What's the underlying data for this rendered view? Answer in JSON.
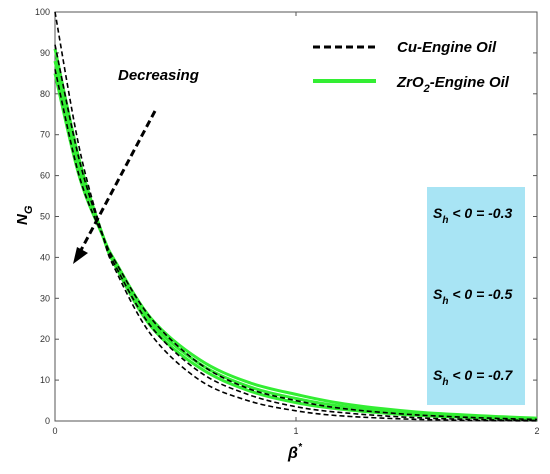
{
  "chart_data": {
    "type": "line",
    "xlabel": "β",
    "xlabel_superscript": "*",
    "ylabel": "N",
    "ylabel_subscript": "G",
    "xlim": [
      0,
      2
    ],
    "ylim": [
      0,
      100
    ],
    "x_ticks": [
      "0",
      "1",
      "2"
    ],
    "y_ticks": [
      "0",
      "10",
      "20",
      "30",
      "40",
      "50",
      "60",
      "70",
      "80",
      "90",
      "100"
    ],
    "grid": false,
    "legend_position": "top-right",
    "legend": [
      {
        "label_main": "Cu-Engine Oil",
        "label_sub": "",
        "label_tail": "",
        "style": "dashed",
        "color": "#000000"
      },
      {
        "label_main": "ZrO",
        "label_sub": "2",
        "label_tail": "-Engine Oil",
        "style": "solid",
        "color": "#33ee33"
      }
    ],
    "annotation": {
      "text": "Decreasing"
    },
    "info_box": {
      "color": "#a8e4f4",
      "items": [
        {
          "pre": "S",
          "sub": "h",
          "post": "< 0 = -0.3"
        },
        {
          "pre": "S",
          "sub": "h",
          "post": "< 0 = -0.5"
        },
        {
          "pre": "S",
          "sub": "h",
          "post": "< 0 = -0.7"
        }
      ]
    },
    "series": [
      {
        "group": "Cu-Engine Oil",
        "style": "dashed",
        "color": "#000000",
        "x": [
          0,
          0.1,
          0.2,
          0.25,
          0.4,
          0.6,
          0.8,
          1.0,
          1.2,
          1.5,
          1.8,
          2.0
        ],
        "values": [
          100,
          67,
          45,
          37,
          21,
          10,
          5,
          2.5,
          1.2,
          0.4,
          0.1,
          0.05
        ]
      },
      {
        "group": "Cu-Engine Oil",
        "style": "dashed",
        "color": "#000000",
        "x": [
          0,
          0.1,
          0.2,
          0.25,
          0.4,
          0.6,
          0.8,
          1.0,
          1.2,
          1.5,
          1.8,
          2.0
        ],
        "values": [
          92,
          64,
          45,
          38,
          23,
          12,
          6.5,
          3.5,
          2.0,
          0.8,
          0.3,
          0.15
        ]
      },
      {
        "group": "Cu-Engine Oil",
        "style": "dashed",
        "color": "#000000",
        "x": [
          0,
          0.1,
          0.2,
          0.25,
          0.4,
          0.6,
          0.8,
          1.0,
          1.2,
          1.5,
          1.8,
          2.0
        ],
        "values": [
          86,
          60,
          45,
          39,
          25,
          14,
          8,
          5,
          3,
          1.5,
          0.7,
          0.4
        ]
      },
      {
        "group": "ZrO2-Engine Oil",
        "style": "solid",
        "color": "#33ee33",
        "x": [
          0,
          0.1,
          0.2,
          0.25,
          0.4,
          0.6,
          0.8,
          1.0,
          1.2,
          1.5,
          1.8,
          2.0
        ],
        "values": [
          91,
          64,
          45,
          38,
          23,
          13,
          7.5,
          4.5,
          2.8,
          1.4,
          0.7,
          0.4
        ]
      },
      {
        "group": "ZrO2-Engine Oil",
        "style": "solid",
        "color": "#33ee33",
        "x": [
          0,
          0.1,
          0.2,
          0.25,
          0.4,
          0.6,
          0.8,
          1.0,
          1.2,
          1.5,
          1.8,
          2.0
        ],
        "values": [
          88,
          62,
          45,
          38.5,
          24,
          14,
          8.5,
          5.5,
          3.5,
          1.8,
          0.9,
          0.5
        ]
      },
      {
        "group": "ZrO2-Engine Oil",
        "style": "solid",
        "color": "#33ee33",
        "x": [
          0,
          0.1,
          0.2,
          0.25,
          0.4,
          0.6,
          0.8,
          1.0,
          1.2,
          1.5,
          1.8,
          2.0
        ],
        "values": [
          85,
          60,
          45,
          39,
          25,
          15,
          9.5,
          6.5,
          4.2,
          2.2,
          1.2,
          0.7
        ]
      }
    ]
  }
}
